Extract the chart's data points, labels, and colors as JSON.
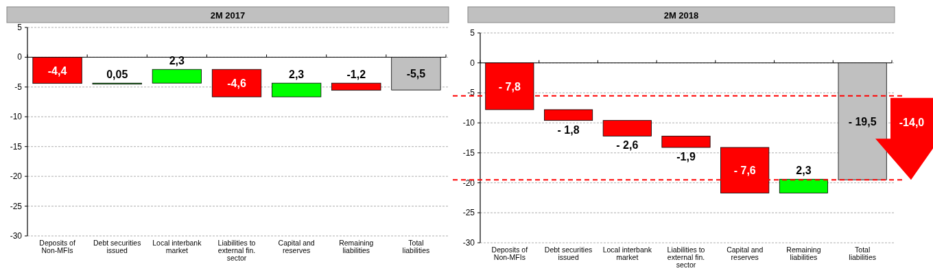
{
  "chart_data": [
    {
      "type": "bar",
      "title": "2M 2017",
      "categories": [
        "Deposits of Non-MFIs",
        "Debt securities issued",
        "Local interbank market",
        "Liabilities to external fin. sector",
        "Capital and reserves",
        "Remaining liabilities",
        "Total liabilities"
      ],
      "values": [
        -4.4,
        0.05,
        2.3,
        -4.6,
        2.3,
        -1.2,
        -5.5
      ],
      "base": [
        0,
        -4.4,
        -4.35,
        -2.05,
        -6.65,
        -4.35,
        0
      ],
      "colors": [
        "#ff0000",
        "#00aa00",
        "#00ff00",
        "#ff0000",
        "#00ff00",
        "#ff0000",
        "#c0c0c0"
      ],
      "value_labels": [
        "-4,4",
        "0,05",
        "2,3",
        "-4,6",
        "2,3",
        "-1,2",
        "-5,5"
      ],
      "ylim": [
        -30,
        5
      ],
      "yticks": [
        -30,
        -25,
        -20,
        -15,
        -10,
        -5,
        0,
        5
      ],
      "grid": "y"
    },
    {
      "type": "bar",
      "title": "2M 2018",
      "categories": [
        "Deposits of Non-MFIs",
        "Debt securities issued",
        "Local interbank market",
        "Liabilities to external fin. sector",
        "Capital and reserves",
        "Remaining liabilities",
        "Total liabilities"
      ],
      "values": [
        -7.8,
        -1.8,
        -2.6,
        -1.9,
        -7.6,
        2.3,
        -19.5
      ],
      "base": [
        0,
        -7.8,
        -9.6,
        -12.2,
        -14.1,
        -21.7,
        0
      ],
      "colors": [
        "#ff0000",
        "#ff0000",
        "#ff0000",
        "#ff0000",
        "#ff0000",
        "#00ff00",
        "#c0c0c0"
      ],
      "value_labels": [
        "- 7,8",
        "- 1,8",
        "- 2,6",
        "-1,9",
        "- 7,6",
        "2,3",
        "- 19,5"
      ],
      "ylim": [
        -30,
        5
      ],
      "yticks": [
        -30,
        -25,
        -20,
        -15,
        -10,
        -5,
        0,
        5
      ],
      "grid": "y",
      "ref_lines": [
        {
          "axis": "y",
          "value": -5.5,
          "color": "#ff0000",
          "line_style": "dashed"
        },
        {
          "axis": "y",
          "value": -19.5,
          "color": "#ff0000",
          "line_style": "dashed"
        }
      ],
      "annotations": [
        "-14,0"
      ]
    }
  ]
}
